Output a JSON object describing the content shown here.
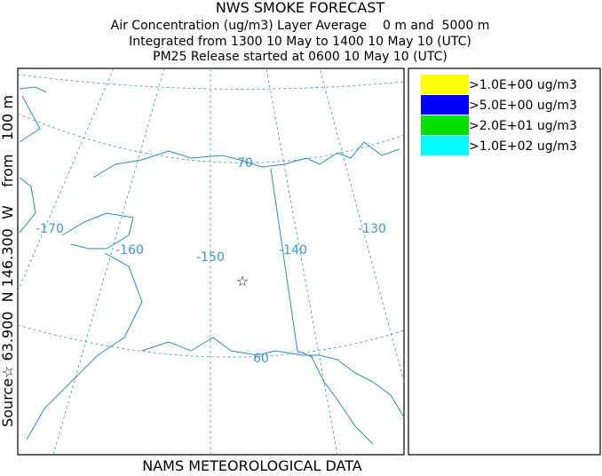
{
  "header": {
    "title": "NWS SMOKE FORECAST",
    "lines": [
      "Air Concentration (ug/m3) Layer Average    0 m and  5000 m",
      "Integrated from 1300 10 May to 1400 10 May 10 (UTC)",
      "PM25 Release started at 0600 10 May 10 (UTC)"
    ]
  },
  "side_label": "Source☆ 63.900  N 146.300  W    from   100 m",
  "footer": "NAMS METEOROLOGICAL DATA",
  "legend": [
    {
      "label": ">1.0E+00 ug/m3",
      "color": "#ffff00"
    },
    {
      "label": ">5.0E+00 ug/m3",
      "color": "#0000ff"
    },
    {
      "label": ">2.0E+01 ug/m3",
      "color": "#00e000"
    },
    {
      "label": ">1.0E+02 ug/m3",
      "color": "#00ffff"
    }
  ],
  "map": {
    "source_marker": "☆",
    "longitude_labels": [
      -170,
      -160,
      -150,
      -140,
      -130
    ],
    "latitude_labels": [
      70,
      60
    ]
  }
}
